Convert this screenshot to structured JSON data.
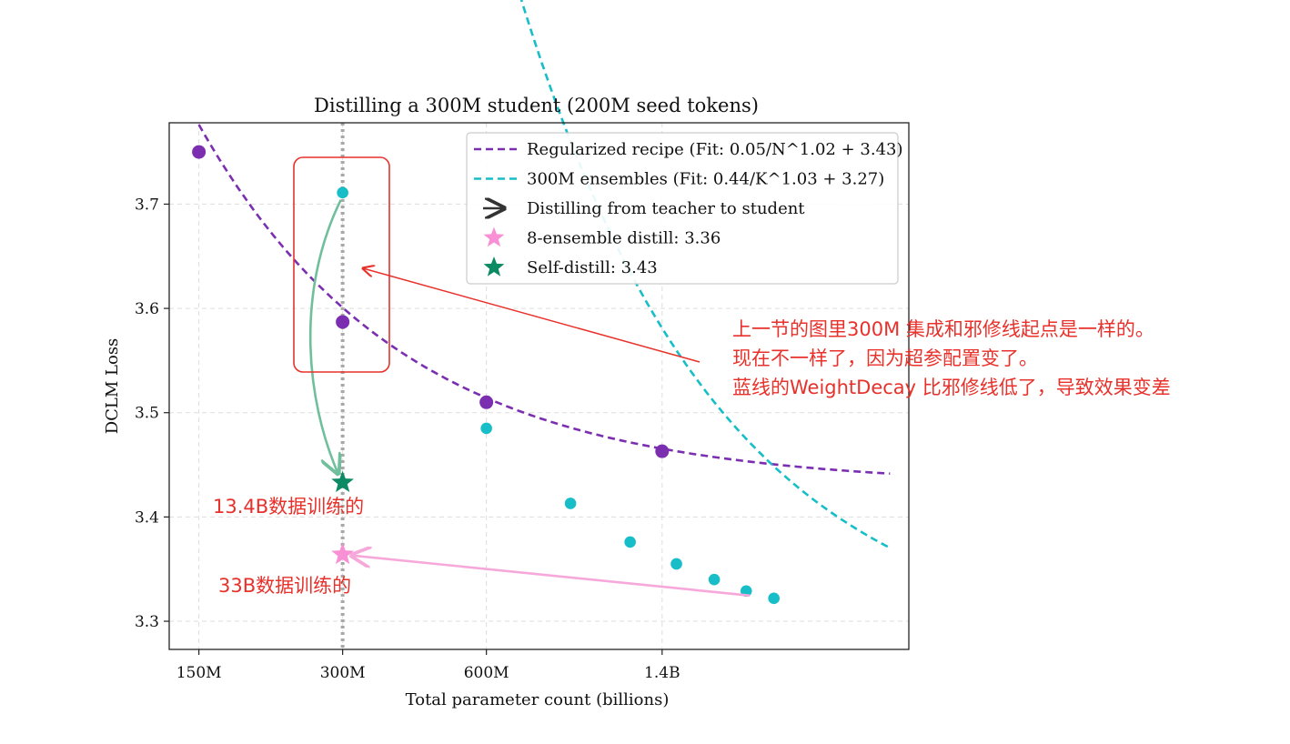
{
  "chart_data": {
    "type": "line",
    "title": "Distilling a 300M student (200M seed tokens)",
    "xlabel": "Total parameter count (billions)",
    "ylabel": "DCLM Loss",
    "x_scale": "log",
    "xlim": [
      0.13,
      4.6
    ],
    "ylim": [
      3.273,
      3.778
    ],
    "x_ticks": [
      {
        "value": 0.15,
        "label": "150M"
      },
      {
        "value": 0.3,
        "label": "300M"
      },
      {
        "value": 0.6,
        "label": "600M"
      },
      {
        "value": 1.4,
        "label": "1.4B"
      }
    ],
    "y_ticks": [
      3.3,
      3.4,
      3.5,
      3.6,
      3.7
    ],
    "grid": true,
    "legend_position": "top-right",
    "reference_line_x": 0.3,
    "series": [
      {
        "name": "Regularized recipe (Fit: 0.05/N^1.02 + 3.43)",
        "color": "#7b2fb0",
        "points": [
          [
            0.15,
            3.75
          ],
          [
            0.3,
            3.587
          ],
          [
            0.6,
            3.51
          ],
          [
            1.4,
            3.463
          ]
        ],
        "fit": {
          "a": 0.05,
          "b": 1.02,
          "c": 3.43,
          "var": "N",
          "x_range": [
            0.15,
            4.2
          ]
        }
      },
      {
        "name": "300M ensembles (Fit: 0.44/K^1.03 + 3.27)",
        "color": "#17bec8",
        "points": [
          [
            0.3,
            3.711
          ],
          [
            0.6,
            3.485
          ],
          [
            0.9,
            3.413
          ],
          [
            1.2,
            3.376
          ],
          [
            1.5,
            3.355
          ],
          [
            1.8,
            3.34
          ],
          [
            2.1,
            3.329
          ],
          [
            2.4,
            3.322
          ]
        ],
        "fit": {
          "a": 0.44,
          "b": 1.03,
          "c": 3.27,
          "var": "K",
          "x_range": [
            0.3,
            4.2
          ]
        }
      }
    ],
    "special_points": [
      {
        "name": "8-ensemble distill: 3.36",
        "x": 0.3,
        "y": 3.364,
        "color": "#f98fd4"
      },
      {
        "name": "Self-distill: 3.43",
        "x": 0.3,
        "y": 3.433,
        "color": "#0b8a64"
      }
    ],
    "legend": [
      {
        "label": "Regularized recipe (Fit: 0.05/N^1.02 + 3.43)",
        "kind": "dashed",
        "color": "#7b2fb0"
      },
      {
        "label": "300M ensembles (Fit: 0.44/K^1.03 + 3.27)",
        "kind": "dashed",
        "color": "#17bec8"
      },
      {
        "label": "Distilling from teacher to student",
        "kind": "arrow",
        "color": "#333333"
      },
      {
        "label": "8-ensemble distill: 3.36",
        "kind": "star",
        "color": "#f98fd4"
      },
      {
        "label": "Self-distill: 3.43",
        "kind": "star",
        "color": "#0b8a64"
      }
    ],
    "annotations": {
      "color": "#e8312b",
      "note_lines": [
        "上一节的图里300M 集成和邪修线起点是一样的。",
        "现在不一样了，因为超参配置变了。",
        "蓝线的WeightDecay 比邪修线低了，导致效果变差"
      ],
      "label_self": "13.4B数据训练的",
      "label_ensemble": "33B数据训练的"
    }
  }
}
